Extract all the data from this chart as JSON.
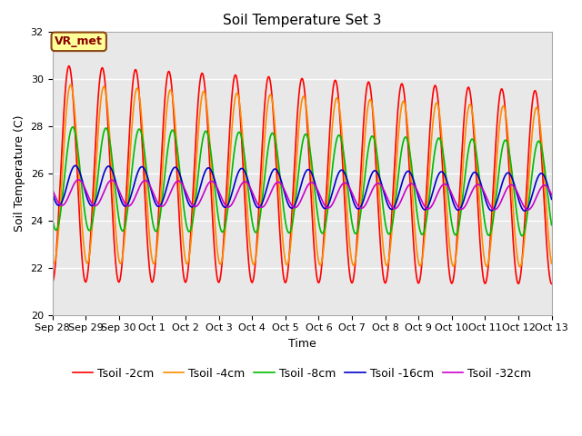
{
  "title": "Soil Temperature Set 3",
  "ylabel": "Soil Temperature (C)",
  "xlabel": "Time",
  "ylim": [
    20,
    32
  ],
  "annotation": "VR_met",
  "xtick_labels": [
    "Sep 28",
    "Sep 29",
    "Sep 30",
    "Oct 1",
    "Oct 2",
    "Oct 3",
    "Oct 4",
    "Oct 5",
    "Oct 6",
    "Oct 7",
    "Oct 8",
    "Oct 9",
    "Oct 10",
    "Oct 11",
    "Oct 12",
    "Oct 13"
  ],
  "ytick_labels": [
    "20",
    "22",
    "24",
    "26",
    "28",
    "30",
    "32"
  ],
  "series": [
    {
      "label": "Tsoil -2cm",
      "color": "#FF0000",
      "amplitude": 4.6,
      "phase": 0.0,
      "mean": 26.0,
      "decay": 0.008,
      "mean_decay": 0.04
    },
    {
      "label": "Tsoil -4cm",
      "color": "#FF8C00",
      "amplitude": 3.8,
      "phase": 0.3,
      "mean": 26.0,
      "decay": 0.008,
      "mean_decay": 0.04
    },
    {
      "label": "Tsoil -8cm",
      "color": "#00BB00",
      "amplitude": 2.2,
      "phase": 0.7,
      "mean": 25.8,
      "decay": 0.006,
      "mean_decay": 0.03
    },
    {
      "label": "Tsoil -16cm",
      "color": "#0000CC",
      "amplitude": 0.85,
      "phase": 1.2,
      "mean": 25.5,
      "decay": 0.004,
      "mean_decay": 0.02
    },
    {
      "label": "Tsoil -32cm",
      "color": "#CC00CC",
      "amplitude": 0.55,
      "phase": 1.8,
      "mean": 25.2,
      "decay": 0.003,
      "mean_decay": 0.015
    }
  ],
  "bg_color": "#E8E8E8",
  "fig_color": "#FFFFFF",
  "title_fontsize": 11,
  "label_fontsize": 9,
  "tick_fontsize": 8,
  "linewidth": 1.2,
  "legend_fontsize": 9,
  "num_points": 3600,
  "days": 15.0
}
